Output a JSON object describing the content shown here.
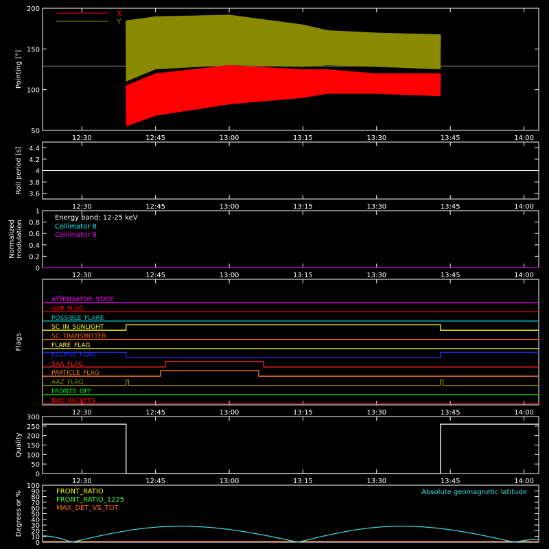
{
  "colors": {
    "background": "#000000",
    "axis": "#ffffff",
    "pointing_x": "#ff0000",
    "pointing_y": "#8a8a00",
    "collimator_8": "#00ffff",
    "collimator_9": "#ff00ff",
    "latitude": "#40e0e0"
  },
  "chart_data": [
    {
      "type": "area",
      "ylabel": "Pointing [°]",
      "ylim": [
        50,
        200
      ],
      "yticks": [
        50,
        100,
        150,
        200
      ],
      "x_tick_labels": [
        "12:30",
        "12:45",
        "13:00",
        "13:15",
        "13:30",
        "13:45",
        "14:00"
      ],
      "xlim": [
        "12:22",
        "14:03"
      ],
      "legend": "top-left",
      "series": [
        {
          "name": "X",
          "color": "#ff0000",
          "x": [
            "12:39",
            "12:45",
            "13:00",
            "13:15",
            "13:20",
            "13:30",
            "13:43"
          ],
          "low": [
            55,
            68,
            82,
            90,
            95,
            95,
            92
          ],
          "high": [
            105,
            120,
            130,
            125,
            125,
            120,
            120
          ]
        },
        {
          "name": "Y",
          "color": "#8a8a00",
          "x": [
            "12:39",
            "12:45",
            "13:00",
            "13:15",
            "13:20",
            "13:30",
            "13:43"
          ],
          "low": [
            110,
            125,
            130,
            128,
            130,
            128,
            125
          ],
          "high": [
            185,
            190,
            192,
            180,
            173,
            170,
            168
          ]
        }
      ],
      "reference_line": {
        "value": 129,
        "color": "#888888"
      }
    },
    {
      "type": "line",
      "ylabel": "Roll period [s]",
      "ylim": [
        3.5,
        4.5
      ],
      "yticks": [
        3.6,
        3.8,
        4.0,
        4.2,
        4.4
      ],
      "x_tick_labels": [
        "12:30",
        "12:45",
        "13:00",
        "13:15",
        "13:30",
        "13:45",
        "14:00"
      ],
      "series": [
        {
          "x": [
            "12:22",
            "14:03"
          ],
          "values": [
            4.0,
            4.0
          ],
          "color": "#ffffff"
        }
      ]
    },
    {
      "type": "line",
      "ylabel_lines": [
        "Normalized",
        "modulation"
      ],
      "ylim": [
        0,
        1
      ],
      "yticks": [
        0.0,
        0.2,
        0.4,
        0.6,
        0.8,
        1.0
      ],
      "x_tick_labels": [
        "12:30",
        "12:45",
        "13:00",
        "13:15",
        "13:30",
        "13:45",
        "14:00"
      ],
      "annotation": "Energy band: 12-25 keV",
      "legend": "top-left",
      "series": [
        {
          "name": "Collimator 8",
          "color": "#00ffff",
          "x": [
            "12:22",
            "14:03"
          ],
          "values": [
            0,
            0
          ]
        },
        {
          "name": "Collimator 9",
          "color": "#ff00ff",
          "x": [
            "12:22",
            "14:03"
          ],
          "values": [
            0,
            0
          ]
        }
      ]
    },
    {
      "type": "line",
      "ylabel": "Flags",
      "x_tick_labels": [
        "12:30",
        "12:45",
        "13:00",
        "13:15",
        "13:30",
        "13:45",
        "14:00"
      ],
      "flags": [
        {
          "name": "ATTENUATOR_STATE",
          "color": "#ff00ff",
          "segments": [
            [
              "12:22",
              "14:03",
              0
            ]
          ]
        },
        {
          "name": "GAP_FLAG",
          "color": "#ff0000",
          "segments": [
            [
              "12:22",
              "14:03",
              0
            ]
          ]
        },
        {
          "name": "POSSIBLE_FLARE",
          "color": "#00c8c8",
          "segments": [
            [
              "12:22",
              "14:03",
              0
            ]
          ]
        },
        {
          "name": "SC_IN_SUNLIGHT",
          "color": "#ffff00",
          "segments": [
            [
              "12:22",
              "12:39",
              0
            ],
            [
              "12:39",
              "13:43",
              1
            ],
            [
              "13:43",
              "14:03",
              0
            ]
          ]
        },
        {
          "name": "SC_TRANSMITTER",
          "color": "#ff6600",
          "segments": [
            [
              "12:22",
              "14:03",
              0
            ]
          ]
        },
        {
          "name": "FLARE_FLAG",
          "color": "#ffff40",
          "segments": [
            [
              "12:22",
              "14:03",
              0
            ]
          ]
        },
        {
          "name": "ECLIPSE_FLAG",
          "color": "#2030ff",
          "segments": [
            [
              "12:22",
              "12:39",
              1
            ],
            [
              "12:39",
              "13:43",
              0
            ],
            [
              "13:43",
              "14:03",
              1
            ]
          ]
        },
        {
          "name": "SAA_FLAG",
          "color": "#ff2020",
          "segments": [
            [
              "12:22",
              "12:47",
              0
            ],
            [
              "12:47",
              "13:07",
              1
            ],
            [
              "13:07",
              "14:03",
              0
            ]
          ]
        },
        {
          "name": "PARTICLE_FLAG",
          "color": "#ff8030",
          "segments": [
            [
              "12:22",
              "12:46",
              0
            ],
            [
              "12:46",
              "13:06",
              1
            ],
            [
              "13:06",
              "14:03",
              0
            ]
          ]
        },
        {
          "name": "AAZ_FLAG",
          "color": "#8a8a00",
          "segments": [
            [
              "12:22",
              "12:39",
              0
            ],
            [
              "12:39",
              "12:39.5",
              1
            ],
            [
              "12:39.5",
              "13:43",
              0
            ],
            [
              "13:43",
              "13:43.5",
              1
            ],
            [
              "13:43.5",
              "14:03",
              0
            ]
          ]
        },
        {
          "name": "FRONTS_OFF",
          "color": "#00ff00",
          "segments": [
            [
              "12:22",
              "14:03",
              0
            ]
          ]
        },
        {
          "name": "BAD_PACKETS",
          "color": "#ff0000",
          "segments": [
            [
              "12:22",
              "14:03",
              0
            ]
          ]
        }
      ]
    },
    {
      "type": "line",
      "ylabel": "Quality",
      "ylim": [
        0,
        300
      ],
      "yticks": [
        0,
        50,
        100,
        150,
        200,
        250,
        300
      ],
      "x_tick_labels": [
        "12:30",
        "12:45",
        "13:00",
        "13:15",
        "13:30",
        "13:45",
        "14:00"
      ],
      "series": [
        {
          "color": "#ffffff",
          "x": [
            "12:22",
            "12:39",
            "12:39",
            "13:43",
            "13:43",
            "14:03"
          ],
          "values": [
            260,
            260,
            0,
            0,
            260,
            260
          ]
        }
      ]
    },
    {
      "type": "line",
      "ylabel": "Degrees or %",
      "ylim": [
        0,
        100
      ],
      "yticks": [
        0,
        10,
        20,
        30,
        40,
        50,
        60,
        70,
        80,
        90,
        100
      ],
      "legend": "top-left",
      "annotation": "Absolute geomagnetic latitude",
      "series": [
        {
          "name": "FRONT_RATIO",
          "color": "#ffff00",
          "x": [],
          "values": []
        },
        {
          "name": "FRONT_RATIO_1225",
          "color": "#40ff40",
          "x": [],
          "values": []
        },
        {
          "name": "MAX_DET_VS_TOT",
          "color": "#ff6600",
          "x": [
            "12:22",
            "14:03"
          ],
          "values": [
            0,
            0
          ]
        },
        {
          "name": "Absolute geomagnetic latitude",
          "color": "#40e0e0",
          "x": [
            "12:22",
            "12:28",
            "12:50",
            "13:14",
            "13:35",
            "13:58",
            "14:03"
          ],
          "values": [
            11,
            0,
            28,
            0,
            28,
            0,
            5
          ]
        }
      ]
    }
  ]
}
